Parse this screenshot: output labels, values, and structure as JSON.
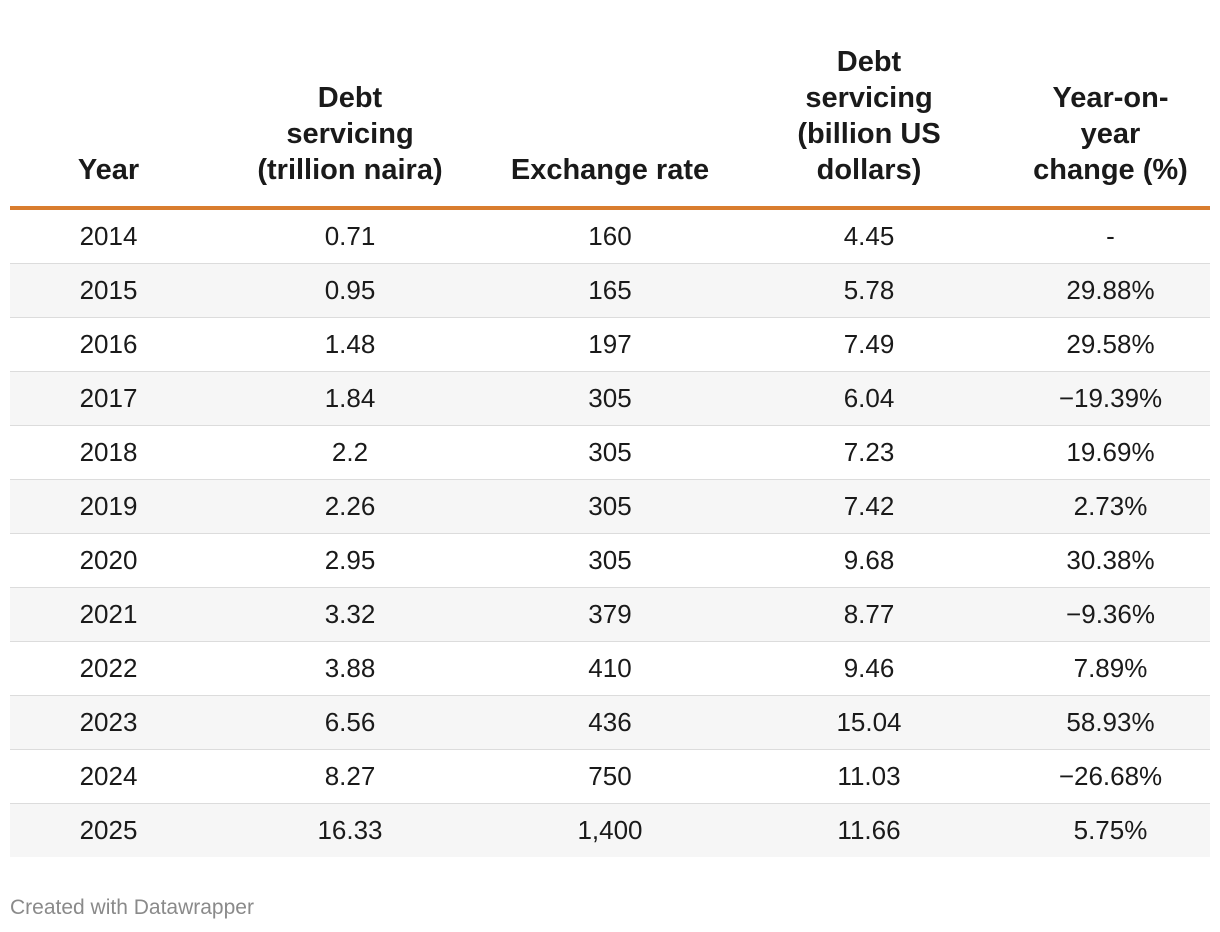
{
  "chart_data": {
    "type": "table",
    "columns": [
      {
        "key": "year",
        "lines": [
          "Year"
        ]
      },
      {
        "key": "debt_naira",
        "lines": [
          "Debt",
          "servicing",
          "(trillion naira)"
        ]
      },
      {
        "key": "exchange_rate",
        "lines": [
          "Exchange rate"
        ]
      },
      {
        "key": "debt_usd",
        "lines": [
          "Debt",
          "servicing",
          "(billion US",
          "dollars)"
        ]
      },
      {
        "key": "yoy",
        "lines": [
          "Year-on-",
          "year",
          "change (%)"
        ]
      }
    ],
    "rows": [
      [
        "2014",
        "0.71",
        "160",
        "4.45",
        "-"
      ],
      [
        "2015",
        "0.95",
        "165",
        "5.78",
        "29.88%"
      ],
      [
        "2016",
        "1.48",
        "197",
        "7.49",
        "29.58%"
      ],
      [
        "2017",
        "1.84",
        "305",
        "6.04",
        "−19.39%"
      ],
      [
        "2018",
        "2.2",
        "305",
        "7.23",
        "19.69%"
      ],
      [
        "2019",
        "2.26",
        "305",
        "7.42",
        "2.73%"
      ],
      [
        "2020",
        "2.95",
        "305",
        "9.68",
        "30.38%"
      ],
      [
        "2021",
        "3.32",
        "379",
        "8.77",
        "−9.36%"
      ],
      [
        "2022",
        "3.88",
        "410",
        "9.46",
        "7.89%"
      ],
      [
        "2023",
        "6.56",
        "436",
        "15.04",
        "58.93%"
      ],
      [
        "2024",
        "8.27",
        "750",
        "11.03",
        "−26.68%"
      ],
      [
        "2025",
        "16.33",
        "1,400",
        "11.66",
        "5.75%"
      ]
    ],
    "header_rule_color": "#d97d2e",
    "stripe_color": "#f6f6f6"
  },
  "footer": {
    "credit": "Created with Datawrapper"
  }
}
